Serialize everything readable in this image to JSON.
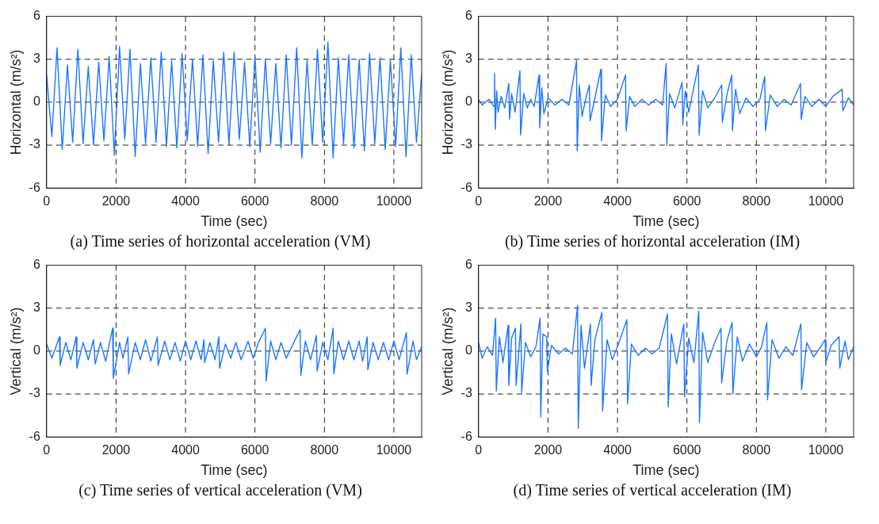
{
  "chart_data": [
    {
      "type": "line",
      "xlabel": "Time (sec)",
      "ylabel": "Horizontal (m/s²)",
      "xlim": [
        0,
        10800
      ],
      "ylim": [
        -6,
        6
      ],
      "xticks": [
        0,
        2000,
        4000,
        6000,
        8000,
        10000
      ],
      "yticks": [
        -6,
        -3,
        0,
        3,
        6
      ],
      "grid": true,
      "annotations": [
        "(a) Time series of horizontal acceleration (VM)"
      ],
      "x": [
        0,
        150,
        300,
        450,
        600,
        750,
        900,
        1050,
        1200,
        1350,
        1500,
        1650,
        1800,
        1950,
        2100,
        2250,
        2400,
        2550,
        2700,
        2850,
        3000,
        3150,
        3300,
        3450,
        3600,
        3750,
        3900,
        4050,
        4200,
        4350,
        4500,
        4650,
        4800,
        4950,
        5100,
        5250,
        5400,
        5550,
        5700,
        5850,
        6000,
        6150,
        6300,
        6450,
        6600,
        6750,
        6900,
        7050,
        7200,
        7350,
        7500,
        7650,
        7800,
        7950,
        8100,
        8250,
        8400,
        8550,
        8700,
        8850,
        9000,
        9150,
        9300,
        9450,
        9600,
        9750,
        9900,
        10050,
        10200,
        10350,
        10500,
        10650,
        10800
      ],
      "series": [
        {
          "color": "#1e76ff",
          "values": [
            1.9,
            -2.4,
            3.8,
            -3.3,
            2.6,
            -2.8,
            3.7,
            -2.9,
            2.5,
            -3.0,
            2.8,
            -2.7,
            3.2,
            -3.7,
            3.9,
            -2.6,
            3.7,
            -3.8,
            2.7,
            -2.9,
            3.1,
            -2.8,
            3.5,
            -3.1,
            2.9,
            -3.2,
            3.4,
            -2.7,
            3.0,
            -3.1,
            3.3,
            -3.6,
            2.9,
            -2.8,
            3.5,
            -3.0,
            3.5,
            -2.6,
            2.8,
            -3.1,
            3.2,
            -3.5,
            3.0,
            -2.9,
            2.7,
            -3.2,
            3.3,
            -3.0,
            3.8,
            -3.9,
            2.9,
            -3.0,
            3.7,
            -2.8,
            4.2,
            -3.9,
            3.1,
            -2.9,
            3.3,
            -3.2,
            3.0,
            -3.4,
            3.4,
            -2.9,
            3.1,
            -3.3,
            2.9,
            -3.1,
            3.8,
            -3.8,
            3.3,
            -2.8,
            2.0
          ]
        }
      ]
    },
    {
      "type": "line",
      "xlabel": "Time (sec)",
      "ylabel": "Horizontal (m/s²)",
      "xlim": [
        0,
        10800
      ],
      "ylim": [
        -6,
        6
      ],
      "xticks": [
        0,
        2000,
        4000,
        6000,
        8000,
        10000
      ],
      "yticks": [
        -6,
        -3,
        0,
        3,
        6
      ],
      "grid": true,
      "annotations": [
        "(b) Time series of horizontal acceleration (IM)"
      ],
      "x": [
        0,
        100,
        300,
        440,
        460,
        480,
        520,
        560,
        650,
        750,
        870,
        890,
        950,
        1050,
        1190,
        1210,
        1300,
        1400,
        1500,
        1600,
        1740,
        1760,
        1820,
        1880,
        2000,
        2200,
        2400,
        2600,
        2820,
        2840,
        2900,
        2980,
        3100,
        3190,
        3210,
        3350,
        3520,
        3540,
        3650,
        3800,
        4000,
        4230,
        4250,
        4350,
        4500,
        4700,
        4900,
        5100,
        5300,
        5400,
        5420,
        5500,
        5650,
        5860,
        5880,
        5950,
        6050,
        6330,
        6350,
        6450,
        6600,
        6800,
        7000,
        7020,
        7150,
        7290,
        7310,
        7400,
        7520,
        7700,
        7900,
        8100,
        8240,
        8260,
        8400,
        8600,
        8800,
        9000,
        9270,
        9290,
        9400,
        9600,
        9800,
        10000,
        10200,
        10470,
        10490,
        10650,
        10800
      ],
      "series": [
        {
          "color": "#1e76ff",
          "values": [
            0.2,
            -0.2,
            0.2,
            -0.3,
            2.0,
            -1.9,
            0.8,
            -0.7,
            0.4,
            -0.4,
            1.3,
            -1.2,
            0.6,
            -0.7,
            2.2,
            -2.3,
            0.6,
            -0.4,
            0.2,
            -0.3,
            1.9,
            -1.8,
            1.0,
            -0.8,
            0.3,
            -0.2,
            0.2,
            -0.2,
            2.9,
            -3.4,
            1.2,
            -1.0,
            0.4,
            1.2,
            -1.3,
            0.3,
            2.3,
            -2.7,
            0.5,
            -0.3,
            0.2,
            1.9,
            -2.0,
            0.4,
            -0.3,
            0.2,
            -0.2,
            0.2,
            -0.2,
            2.7,
            -3.0,
            0.6,
            -0.4,
            1.4,
            -1.6,
            0.8,
            -0.7,
            2.6,
            -2.3,
            0.8,
            -0.4,
            0.3,
            1.2,
            -1.4,
            0.5,
            1.9,
            -2.0,
            0.9,
            -0.8,
            0.3,
            -0.3,
            0.2,
            1.8,
            -2.0,
            0.5,
            -0.3,
            0.2,
            -0.2,
            1.3,
            -1.2,
            0.4,
            -0.3,
            0.2,
            -0.3,
            0.4,
            0.9,
            -0.6,
            0.3,
            -0.2
          ]
        }
      ]
    },
    {
      "type": "line",
      "xlabel": "Time (sec)",
      "ylabel": "Vertical (m/s²)",
      "xlim": [
        0,
        10800
      ],
      "ylim": [
        -6,
        6
      ],
      "xticks": [
        0,
        2000,
        4000,
        6000,
        8000,
        10000
      ],
      "yticks": [
        -6,
        -3,
        0,
        3,
        6
      ],
      "grid": true,
      "annotations": [
        "(c) Time series of vertical acceleration (VM)"
      ],
      "x": [
        0,
        150,
        370,
        390,
        550,
        700,
        850,
        870,
        1050,
        1200,
        1350,
        1400,
        1550,
        1700,
        1900,
        1920,
        2100,
        2200,
        2340,
        2360,
        2550,
        2700,
        2850,
        3000,
        3190,
        3210,
        3400,
        3550,
        3700,
        3850,
        4000,
        4150,
        4300,
        4450,
        4530,
        4550,
        4700,
        4850,
        4960,
        4980,
        5150,
        5300,
        5450,
        5600,
        5800,
        5950,
        6100,
        6300,
        6320,
        6450,
        6600,
        6750,
        6900,
        7100,
        7300,
        7320,
        7450,
        7600,
        7770,
        7790,
        7950,
        8100,
        8250,
        8270,
        8400,
        8550,
        8700,
        8850,
        9000,
        9100,
        9230,
        9250,
        9400,
        9550,
        9700,
        9850,
        10000,
        10150,
        10360,
        10380,
        10550,
        10650,
        10800
      ],
      "series": [
        {
          "color": "#1e76ff",
          "values": [
            0.5,
            -0.5,
            1.0,
            -1.0,
            0.6,
            -0.6,
            1.0,
            -1.2,
            0.6,
            -0.6,
            0.8,
            -0.9,
            0.6,
            -0.7,
            1.6,
            -1.9,
            0.6,
            -0.5,
            1.0,
            -1.6,
            0.6,
            -0.6,
            0.8,
            -0.7,
            1.0,
            -1.0,
            0.7,
            -0.6,
            0.6,
            -0.7,
            0.7,
            -0.6,
            0.7,
            -0.6,
            0.8,
            -0.8,
            0.6,
            -0.6,
            1.0,
            -1.2,
            0.5,
            -0.5,
            0.6,
            -0.6,
            0.7,
            -0.5,
            0.6,
            1.6,
            -2.1,
            0.7,
            -0.6,
            0.6,
            -0.5,
            0.5,
            1.5,
            -1.7,
            0.7,
            -0.6,
            1.1,
            -1.4,
            0.6,
            -0.6,
            1.6,
            -1.6,
            0.7,
            -0.6,
            0.7,
            -0.6,
            0.7,
            -0.7,
            1.0,
            -1.3,
            0.6,
            -0.6,
            0.6,
            -0.6,
            0.7,
            -0.6,
            1.3,
            -1.6,
            0.7,
            -0.6,
            0.3
          ]
        }
      ]
    },
    {
      "type": "line",
      "xlabel": "Time (sec)",
      "ylabel": "Vertical (m/s²)",
      "xlim": [
        0,
        10800
      ],
      "ylim": [
        -6,
        6
      ],
      "xticks": [
        0,
        2000,
        4000,
        6000,
        8000,
        10000
      ],
      "yticks": [
        -6,
        -3,
        0,
        3,
        6
      ],
      "grid": true,
      "annotations": [
        "(d) Time series of vertical acceleration (IM)"
      ],
      "x": [
        0,
        100,
        250,
        400,
        490,
        510,
        600,
        700,
        850,
        870,
        950,
        1060,
        1080,
        1220,
        1240,
        1350,
        1500,
        1650,
        1770,
        1790,
        1850,
        1960,
        1980,
        2100,
        2300,
        2500,
        2700,
        2850,
        2870,
        2950,
        3050,
        3220,
        3240,
        3350,
        3550,
        3570,
        3700,
        3850,
        4000,
        4270,
        4290,
        4400,
        4600,
        4800,
        5000,
        5200,
        5440,
        5460,
        5550,
        5700,
        5910,
        5930,
        6050,
        6200,
        6340,
        6360,
        6450,
        6600,
        6800,
        6980,
        7000,
        7150,
        7300,
        7320,
        7450,
        7600,
        7800,
        8000,
        8150,
        8300,
        8320,
        8450,
        8650,
        8850,
        9050,
        9280,
        9300,
        9450,
        9650,
        9850,
        9980,
        10000,
        10150,
        10380,
        10400,
        10550,
        10650,
        10800
      ],
      "series": [
        {
          "color": "#1e76ff",
          "values": [
            0.6,
            -0.5,
            0.3,
            -0.3,
            2.3,
            -2.8,
            1.0,
            -0.8,
            1.8,
            -2.4,
            0.9,
            1.6,
            -2.4,
            1.9,
            -2.9,
            0.6,
            -0.4,
            0.3,
            2.3,
            -4.6,
            1.2,
            1.0,
            -1.4,
            0.4,
            -0.2,
            0.2,
            -0.2,
            3.2,
            -5.4,
            1.8,
            -1.2,
            1.9,
            -2.4,
            0.8,
            2.7,
            -4.2,
            0.8,
            -0.6,
            0.3,
            2.2,
            -3.7,
            0.5,
            -0.3,
            0.2,
            -0.2,
            0.2,
            2.6,
            -3.9,
            1.2,
            -0.9,
            1.9,
            -3.2,
            0.9,
            -0.8,
            2.8,
            -5.0,
            1.3,
            -0.8,
            0.6,
            1.6,
            -2.2,
            0.7,
            2.0,
            -3.0,
            1.0,
            -0.7,
            0.5,
            -0.4,
            0.3,
            2.0,
            -3.4,
            0.8,
            -0.5,
            0.3,
            -0.3,
            1.9,
            -2.7,
            0.6,
            -0.4,
            0.3,
            0.8,
            -0.8,
            0.4,
            1.0,
            -1.2,
            0.7,
            -0.6,
            0.3
          ]
        }
      ]
    }
  ]
}
